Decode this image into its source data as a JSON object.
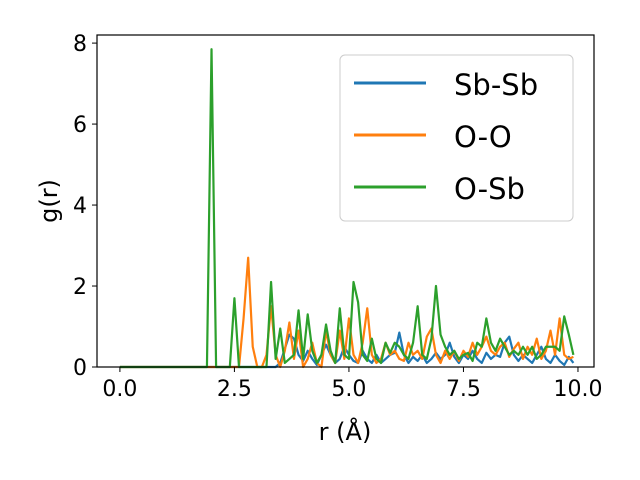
{
  "chart_data": {
    "type": "line",
    "xlabel": "r (Å)",
    "ylabel": "g(r)",
    "xlim": [
      -0.5,
      10.35
    ],
    "ylim": [
      0,
      8.2
    ],
    "xticks": [
      0.0,
      2.5,
      5.0,
      7.5,
      10.0
    ],
    "xtick_labels": [
      "0.0",
      "2.5",
      "5.0",
      "7.5",
      "10.0"
    ],
    "yticks": [
      0,
      2,
      4,
      6,
      8
    ],
    "ytick_labels": [
      "0",
      "2",
      "4",
      "6",
      "8"
    ],
    "grid": false,
    "legend_position": "upper right",
    "series": [
      {
        "name": "Sb-Sb",
        "color": "#1f77b4",
        "x": [
          0.0,
          1.0,
          2.0,
          3.0,
          3.4,
          3.5,
          3.6,
          3.7,
          3.8,
          3.9,
          4.0,
          4.1,
          4.2,
          4.3,
          4.4,
          4.5,
          4.6,
          4.7,
          4.8,
          4.9,
          5.0,
          5.1,
          5.2,
          5.3,
          5.4,
          5.5,
          5.6,
          5.7,
          5.8,
          5.9,
          6.0,
          6.1,
          6.2,
          6.3,
          6.4,
          6.5,
          6.6,
          6.7,
          6.8,
          6.9,
          7.0,
          7.1,
          7.2,
          7.3,
          7.4,
          7.5,
          7.6,
          7.7,
          7.8,
          7.9,
          8.0,
          8.1,
          8.2,
          8.3,
          8.4,
          8.5,
          8.6,
          8.7,
          8.8,
          8.9,
          9.0,
          9.1,
          9.2,
          9.3,
          9.4,
          9.5,
          9.6,
          9.7,
          9.8,
          9.9
        ],
        "y": [
          0,
          0,
          0,
          0,
          0,
          0.1,
          0.45,
          0.8,
          0.7,
          0.3,
          0.15,
          0.4,
          0.2,
          0.05,
          0.3,
          0.55,
          0.3,
          0.1,
          0.2,
          0.5,
          0.3,
          0.15,
          0.1,
          0.4,
          0.2,
          0.1,
          0.3,
          0.1,
          0.2,
          0.3,
          0.35,
          0.85,
          0.3,
          0.1,
          0.25,
          0.15,
          0.3,
          0.1,
          0.2,
          0.35,
          0.2,
          0.3,
          0.6,
          0.25,
          0.1,
          0.3,
          0.2,
          0.4,
          0.2,
          0.1,
          0.35,
          0.2,
          0.3,
          0.25,
          0.6,
          0.75,
          0.3,
          0.15,
          0.3,
          0.2,
          0.1,
          0.3,
          0.5,
          0.2,
          0.1,
          0.3,
          0.15,
          0.05,
          0.25,
          0.1
        ]
      },
      {
        "name": "O-O",
        "color": "#ff7f0e",
        "x": [
          0.0,
          1.0,
          2.0,
          2.6,
          2.7,
          2.8,
          2.9,
          3.0,
          3.1,
          3.2,
          3.3,
          3.4,
          3.5,
          3.6,
          3.7,
          3.8,
          3.9,
          4.0,
          4.1,
          4.2,
          4.3,
          4.4,
          4.5,
          4.6,
          4.7,
          4.8,
          4.9,
          5.0,
          5.1,
          5.2,
          5.3,
          5.4,
          5.5,
          5.6,
          5.7,
          5.8,
          5.9,
          6.0,
          6.1,
          6.2,
          6.3,
          6.4,
          6.5,
          6.6,
          6.7,
          6.8,
          6.9,
          7.0,
          7.1,
          7.2,
          7.3,
          7.4,
          7.5,
          7.6,
          7.7,
          7.8,
          7.9,
          8.0,
          8.1,
          8.2,
          8.3,
          8.4,
          8.5,
          8.6,
          8.7,
          8.8,
          8.9,
          9.0,
          9.1,
          9.2,
          9.3,
          9.4,
          9.5,
          9.6,
          9.7,
          9.8,
          9.9
        ],
        "y": [
          0,
          0,
          0,
          0,
          1.2,
          2.7,
          0.5,
          0.0,
          0.0,
          0.3,
          1.5,
          0.3,
          0.0,
          0.4,
          1.1,
          0.2,
          0.9,
          0.0,
          0.2,
          0.6,
          0.1,
          0.0,
          0.9,
          0.3,
          0.1,
          0.9,
          0.2,
          1.2,
          0.3,
          0.1,
          0.6,
          1.45,
          0.3,
          0.1,
          0.2,
          0.6,
          0.3,
          0.4,
          0.2,
          0.15,
          0.6,
          0.3,
          0.4,
          0.2,
          0.75,
          0.95,
          0.3,
          0.1,
          0.4,
          0.2,
          0.4,
          0.15,
          0.4,
          0.25,
          0.6,
          0.3,
          0.5,
          0.75,
          0.4,
          0.3,
          0.5,
          0.6,
          0.25,
          0.45,
          0.6,
          0.2,
          0.5,
          0.3,
          0.7,
          0.2,
          0.4,
          0.9,
          0.3,
          1.2,
          0.3,
          0.2,
          0.25
        ]
      },
      {
        "name": "O-Sb",
        "color": "#2ca02c",
        "x": [
          0.0,
          1.0,
          1.9,
          2.0,
          2.1,
          2.2,
          2.3,
          2.4,
          2.5,
          2.6,
          2.7,
          2.8,
          2.9,
          3.0,
          3.1,
          3.2,
          3.3,
          3.4,
          3.5,
          3.6,
          3.7,
          3.8,
          3.9,
          4.0,
          4.1,
          4.2,
          4.3,
          4.4,
          4.5,
          4.6,
          4.7,
          4.8,
          4.9,
          5.0,
          5.1,
          5.2,
          5.3,
          5.4,
          5.5,
          5.6,
          5.7,
          5.8,
          5.9,
          6.0,
          6.1,
          6.2,
          6.3,
          6.4,
          6.5,
          6.6,
          6.7,
          6.8,
          6.9,
          7.0,
          7.1,
          7.2,
          7.3,
          7.4,
          7.5,
          7.6,
          7.7,
          7.8,
          7.9,
          8.0,
          8.1,
          8.2,
          8.3,
          8.4,
          8.5,
          8.6,
          8.7,
          8.8,
          8.9,
          9.0,
          9.1,
          9.2,
          9.3,
          9.4,
          9.5,
          9.6,
          9.7,
          9.8,
          9.9
        ],
        "y": [
          0,
          0,
          0,
          7.85,
          0,
          0,
          0,
          0,
          1.7,
          0,
          0,
          0,
          0,
          0,
          0,
          0,
          2.1,
          0.2,
          0.95,
          0.1,
          0.2,
          0.3,
          1.4,
          0.2,
          1.3,
          0.4,
          0.1,
          0.3,
          1.05,
          0.4,
          0.1,
          1.45,
          0.3,
          0.2,
          2.1,
          1.6,
          0.3,
          0.15,
          0.7,
          0.2,
          0.1,
          0.6,
          0.35,
          0.6,
          0.5,
          0.3,
          0.2,
          0.6,
          1.5,
          0.3,
          0.2,
          0.7,
          2.0,
          0.8,
          0.5,
          0.3,
          0.4,
          0.2,
          0.3,
          0.35,
          0.15,
          0.6,
          0.5,
          1.2,
          0.6,
          0.4,
          0.7,
          0.5,
          0.3,
          0.4,
          0.3,
          0.5,
          0.3,
          0.5,
          0.2,
          0.3,
          0.5,
          0.5,
          0.5,
          0.4,
          1.25,
          0.8,
          0.3
        ]
      }
    ]
  }
}
